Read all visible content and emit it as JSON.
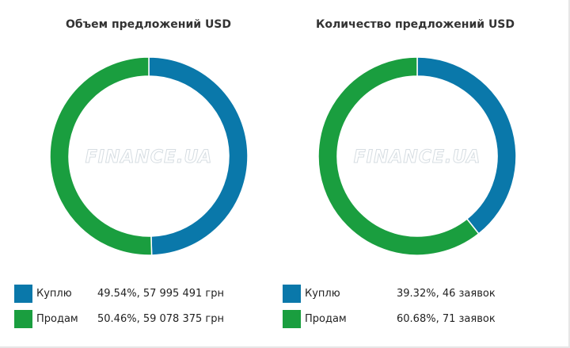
{
  "chart_data": [
    {
      "type": "pie",
      "title": "Объем предложений USD",
      "watermark": "FINANCE.UA",
      "series": [
        {
          "name": "Куплю",
          "percent": 49.54,
          "amount": "57 995 491 грн",
          "display_value": "49.54%, 57 995 491 грн",
          "color": "#0a78aa"
        },
        {
          "name": "Продам",
          "percent": 50.46,
          "amount": "59 078 375 грн",
          "display_value": "50.46%, 59 078 375 грн",
          "color": "#1a9e3f"
        }
      ]
    },
    {
      "type": "pie",
      "title": "Количество предложений USD",
      "watermark": "FINANCE.UA",
      "series": [
        {
          "name": "Куплю",
          "percent": 39.32,
          "amount": "46 заявок",
          "display_value": "39.32%, 46 заявок",
          "color": "#0a78aa"
        },
        {
          "name": "Продам",
          "percent": 60.68,
          "amount": "71 заявок",
          "display_value": "60.68%, 71 заявок",
          "color": "#1a9e3f"
        }
      ]
    }
  ]
}
